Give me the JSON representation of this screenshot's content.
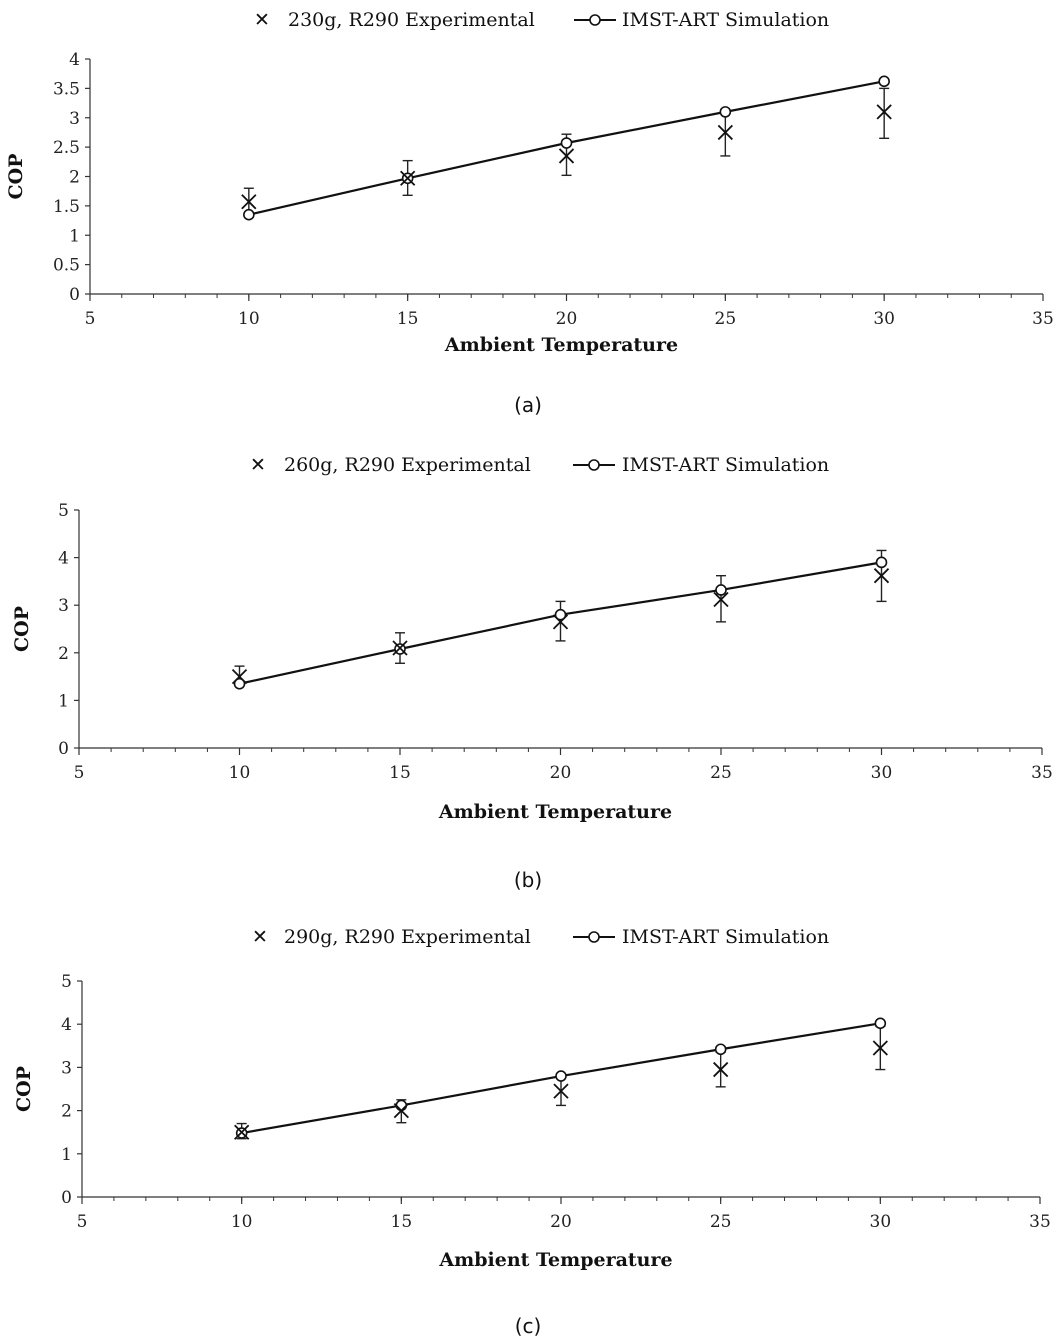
{
  "chart_data": [
    {
      "type": "line",
      "panel_label": "(a)",
      "xlabel": "Ambient Temperature",
      "ylabel": "COP",
      "xlim": [
        5,
        35
      ],
      "ylim": [
        0,
        4
      ],
      "x_ticks": [
        5,
        10,
        15,
        20,
        25,
        30,
        35
      ],
      "y_ticks": [
        0,
        0.5,
        1,
        1.5,
        2,
        2.5,
        3,
        3.5,
        4
      ],
      "x_minor_step": 1,
      "legend_placement": "top-center",
      "series": [
        {
          "name": "230g, R290 Experimental",
          "marker": "x",
          "x": [
            10,
            15,
            20,
            25,
            30
          ],
          "y": [
            1.57,
            1.97,
            2.35,
            2.75,
            3.1
          ],
          "err_low": [
            1.35,
            1.68,
            2.02,
            2.35,
            2.65
          ],
          "err_high": [
            1.8,
            2.27,
            2.72,
            3.1,
            3.5
          ]
        },
        {
          "name": "IMST-ART Simulation",
          "marker": "circle-line",
          "x": [
            10,
            15,
            20,
            25,
            30
          ],
          "y": [
            1.35,
            1.97,
            2.57,
            3.1,
            3.62
          ]
        }
      ]
    },
    {
      "type": "line",
      "panel_label": "(b)",
      "xlabel": "Ambient Temperature",
      "ylabel": "COP",
      "xlim": [
        5,
        35
      ],
      "ylim": [
        0,
        5
      ],
      "x_ticks": [
        5,
        10,
        15,
        20,
        25,
        30,
        35
      ],
      "y_ticks": [
        0,
        1,
        2,
        3,
        4,
        5
      ],
      "x_minor_step": 1,
      "legend_placement": "top-center",
      "series": [
        {
          "name": "260g, R290 Experimental",
          "marker": "x",
          "x": [
            10,
            15,
            20,
            25,
            30
          ],
          "y": [
            1.5,
            2.1,
            2.65,
            3.12,
            3.62
          ],
          "err_low": [
            1.35,
            1.78,
            2.25,
            2.65,
            3.08
          ],
          "err_high": [
            1.72,
            2.42,
            3.08,
            3.62,
            4.15
          ]
        },
        {
          "name": "IMST-ART Simulation",
          "marker": "circle-line",
          "x": [
            10,
            15,
            20,
            25,
            30
          ],
          "y": [
            1.35,
            2.08,
            2.8,
            3.32,
            3.9
          ]
        }
      ]
    },
    {
      "type": "line",
      "panel_label": "(c)",
      "xlabel": "Ambient Temperature",
      "ylabel": "COP",
      "xlim": [
        5,
        35
      ],
      "ylim": [
        0,
        5
      ],
      "x_ticks": [
        5,
        10,
        15,
        20,
        25,
        30,
        35
      ],
      "y_ticks": [
        0,
        1,
        2,
        3,
        4,
        5
      ],
      "x_minor_step": 1,
      "legend_placement": "top-center",
      "series": [
        {
          "name": "290g, R290 Experimental",
          "marker": "x",
          "x": [
            10,
            15,
            20,
            25,
            30
          ],
          "y": [
            1.5,
            2.0,
            2.45,
            2.95,
            3.45
          ],
          "err_low": [
            1.35,
            1.72,
            2.12,
            2.55,
            2.95
          ],
          "err_high": [
            1.7,
            2.25,
            2.8,
            3.35,
            3.95
          ]
        },
        {
          "name": "IMST-ART Simulation",
          "marker": "circle-line",
          "x": [
            10,
            15,
            20,
            25,
            30
          ],
          "y": [
            1.48,
            2.12,
            2.8,
            3.42,
            4.02
          ]
        }
      ]
    }
  ]
}
